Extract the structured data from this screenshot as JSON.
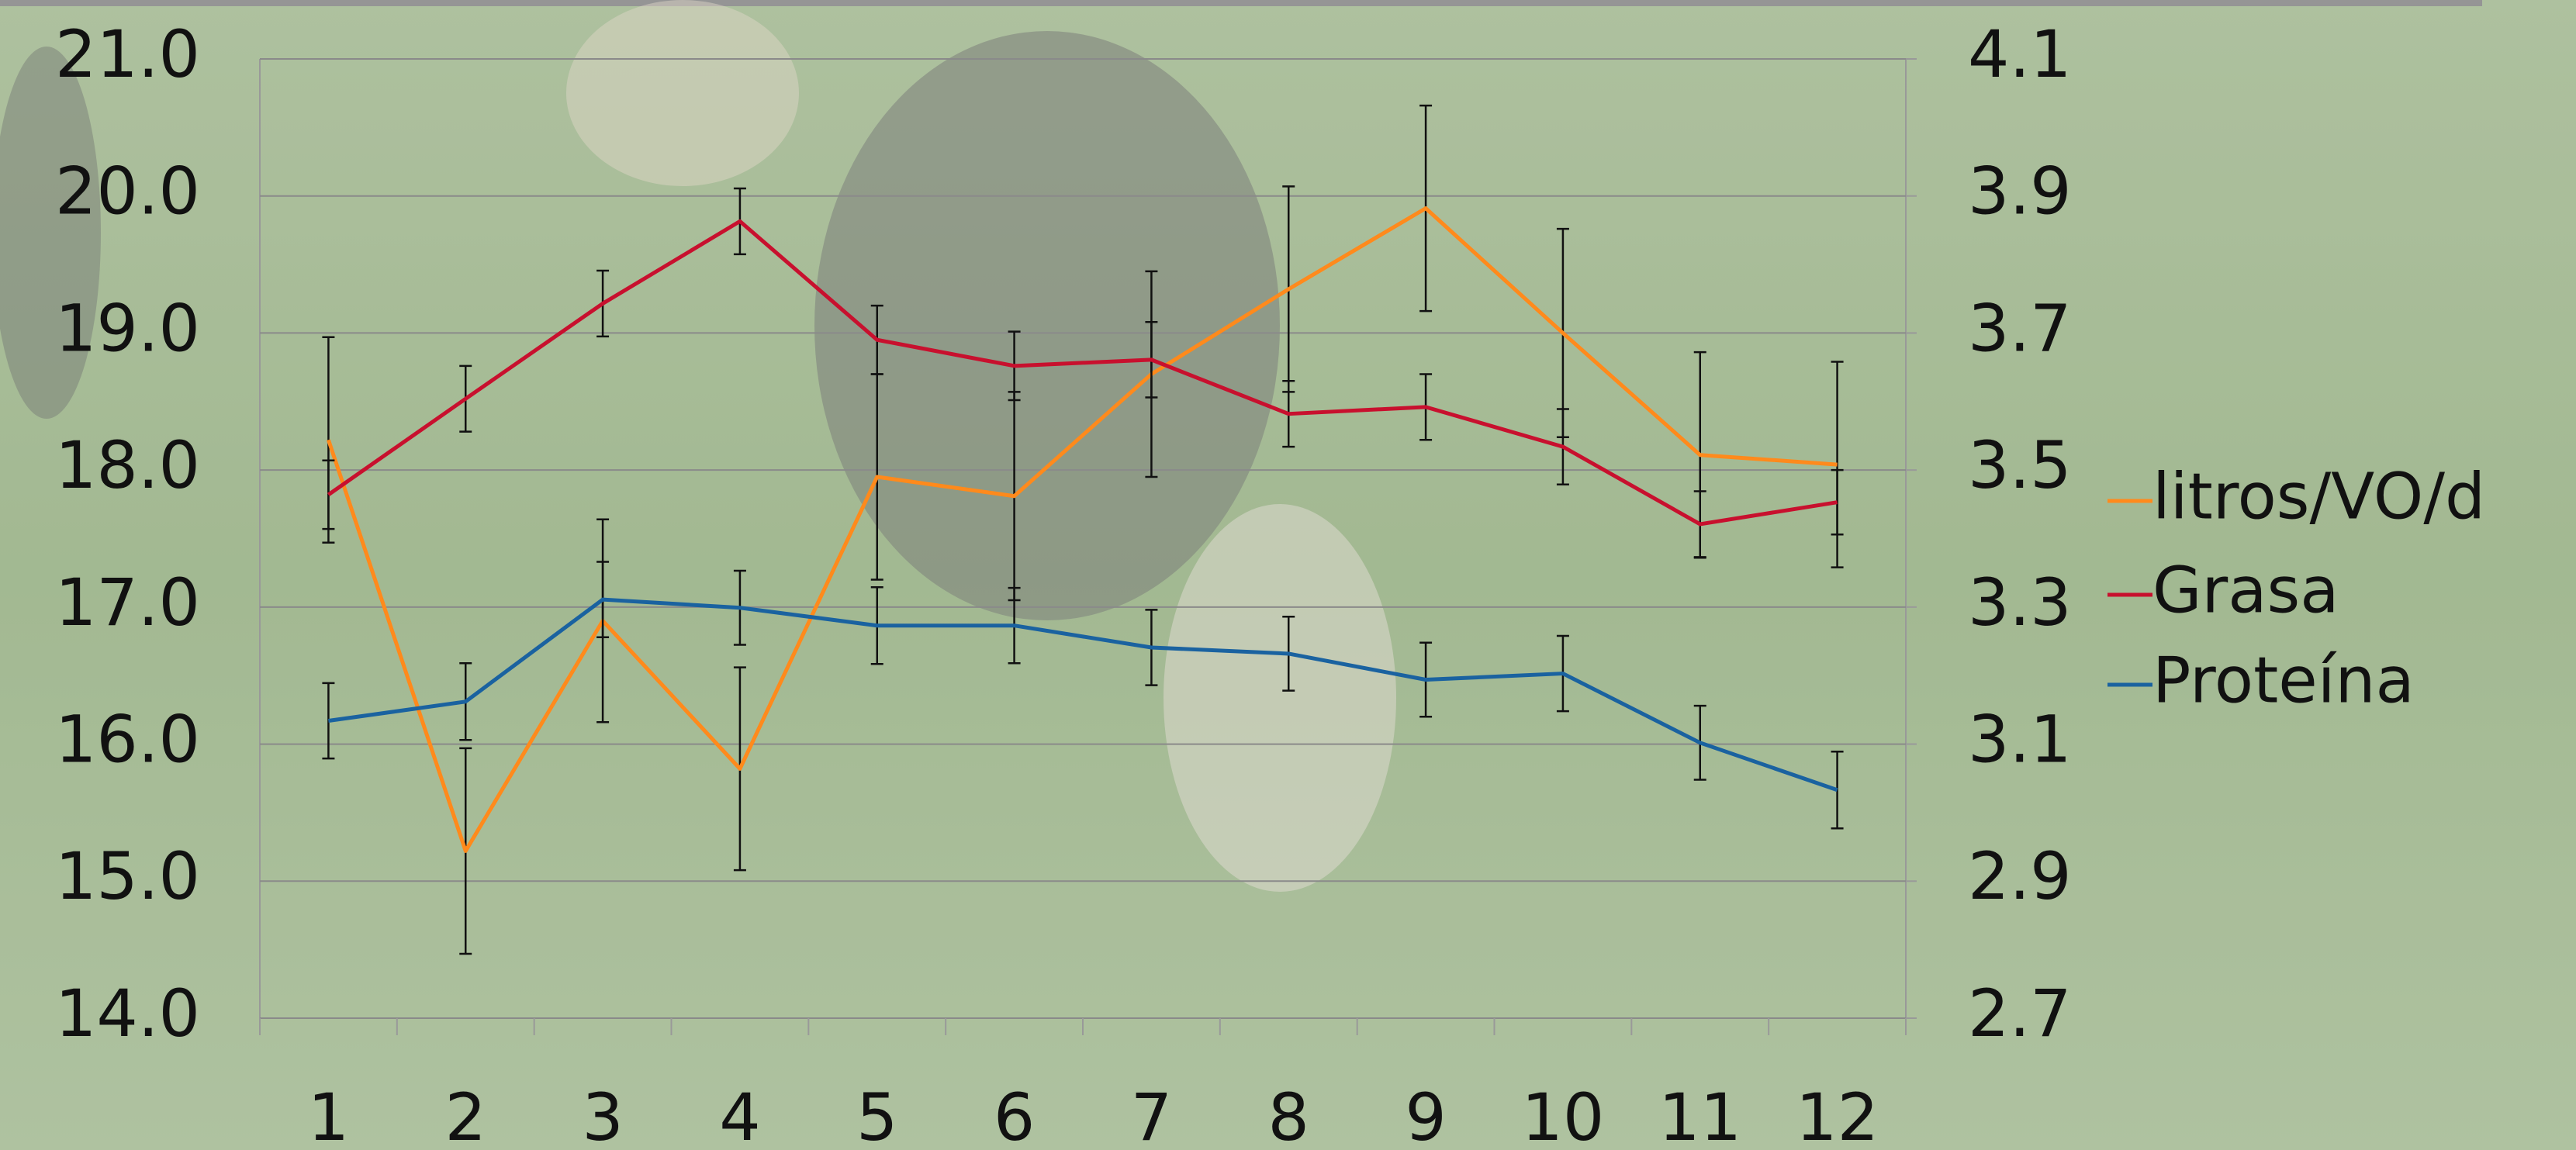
{
  "chart_data": {
    "type": "line",
    "categories": [
      "1",
      "2",
      "3",
      "4",
      "5",
      "6",
      "7",
      "8",
      "9",
      "10",
      "11",
      "12"
    ],
    "ylim": [
      14,
      21
    ],
    "yticks": [
      {
        "value": 14,
        "label": "14.0"
      },
      {
        "value": 15,
        "label": "15.0"
      },
      {
        "value": 16,
        "label": "16.0"
      },
      {
        "value": 17,
        "label": "17.0"
      },
      {
        "value": 18,
        "label": "18.0"
      },
      {
        "value": 19,
        "label": "19.0"
      },
      {
        "value": 20,
        "label": "20.0"
      },
      {
        "value": 21,
        "label": "21.0"
      }
    ],
    "y2lim": [
      2.7,
      4.1
    ],
    "y2ticks": [
      2.7,
      2.9,
      3.1,
      3.3,
      3.5,
      3.7,
      3.9,
      4.1
    ],
    "grid": true,
    "legend": "right",
    "series": [
      {
        "name": "litros/VO/d",
        "color": "#ff8a1c",
        "axis": "y",
        "values": [
          18.22,
          15.22,
          16.9,
          15.82,
          17.95,
          17.81,
          18.7,
          19.32,
          19.91,
          19.0,
          18.11,
          18.04
        ],
        "errors": [
          0.75,
          0.75,
          0.74,
          0.74,
          0.75,
          0.76,
          0.75,
          0.75,
          0.75,
          0.76,
          0.75,
          0.75
        ]
      },
      {
        "name": "Grasa",
        "color": "#c8102e",
        "axis": "y2",
        "values": [
          3.464,
          3.604,
          3.743,
          3.863,
          3.69,
          3.652,
          3.661,
          3.582,
          3.592,
          3.534,
          3.421,
          3.453
        ],
        "errors": [
          0.05,
          0.048,
          0.048,
          0.048,
          0.05,
          0.05,
          0.055,
          0.048,
          0.048,
          0.055,
          0.048,
          0.047
        ]
      },
      {
        "name": "Proteína",
        "color": "#1a62a0",
        "axis": "y2",
        "values": [
          3.134,
          3.162,
          3.311,
          3.299,
          3.273,
          3.273,
          3.241,
          3.232,
          3.194,
          3.203,
          3.102,
          3.033
        ],
        "errors": [
          0.055,
          0.056,
          0.055,
          0.054,
          0.056,
          0.055,
          0.055,
          0.054,
          0.054,
          0.055,
          0.054,
          0.056
        ]
      }
    ]
  }
}
